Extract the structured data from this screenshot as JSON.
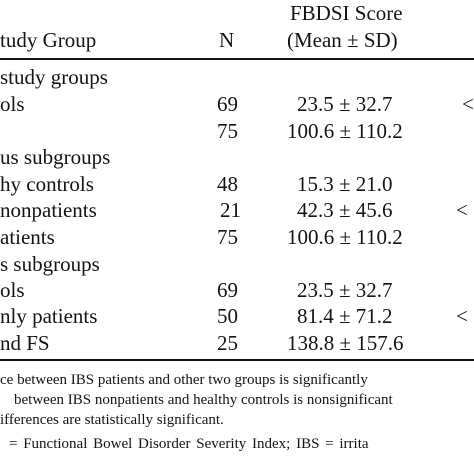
{
  "header": {
    "col_group": "tudy Group",
    "col_n": "N",
    "col_score_line1": "FBDSI Score",
    "col_score_line2": "(Mean ± SD)"
  },
  "rows": [
    {
      "group": "study groups",
      "n": "",
      "score": "",
      "extra": ""
    },
    {
      "group": "ols",
      "n": "69",
      "score": "23.5 ± 32.7",
      "extra": "<"
    },
    {
      "group": "",
      "n": "75",
      "score": "100.6 ± 110.2",
      "extra": ""
    },
    {
      "group": "us subgroups",
      "n": "",
      "score": "",
      "extra": ""
    },
    {
      "group": "hy controls",
      "n": "48",
      "score": "15.3 ± 21.0",
      "extra": ""
    },
    {
      "group": "nonpatients",
      "n": "21",
      "score": "42.3 ± 45.6",
      "extra": "<"
    },
    {
      "group": "atients",
      "n": "75",
      "score": "100.6 ± 110.2",
      "extra": ""
    },
    {
      "group": "s subgroups",
      "n": "",
      "score": "",
      "extra": ""
    },
    {
      "group": "ols",
      "n": "69",
      "score": "23.5 ± 32.7",
      "extra": ""
    },
    {
      "group": "nly patients",
      "n": "50",
      "score": "81.4 ± 71.2",
      "extra": "<"
    },
    {
      "group": "nd FS",
      "n": "25",
      "score": "138.8 ± 157.6",
      "extra": ""
    }
  ],
  "footnotes": [
    "ce between IBS patients and other two groups is significantly",
    "between IBS nonpatients and healthy controls is nonsignificant",
    "ifferences are statistically significant.",
    "= Functional Bowel Disorder Severity Index; IBS = irrita"
  ]
}
